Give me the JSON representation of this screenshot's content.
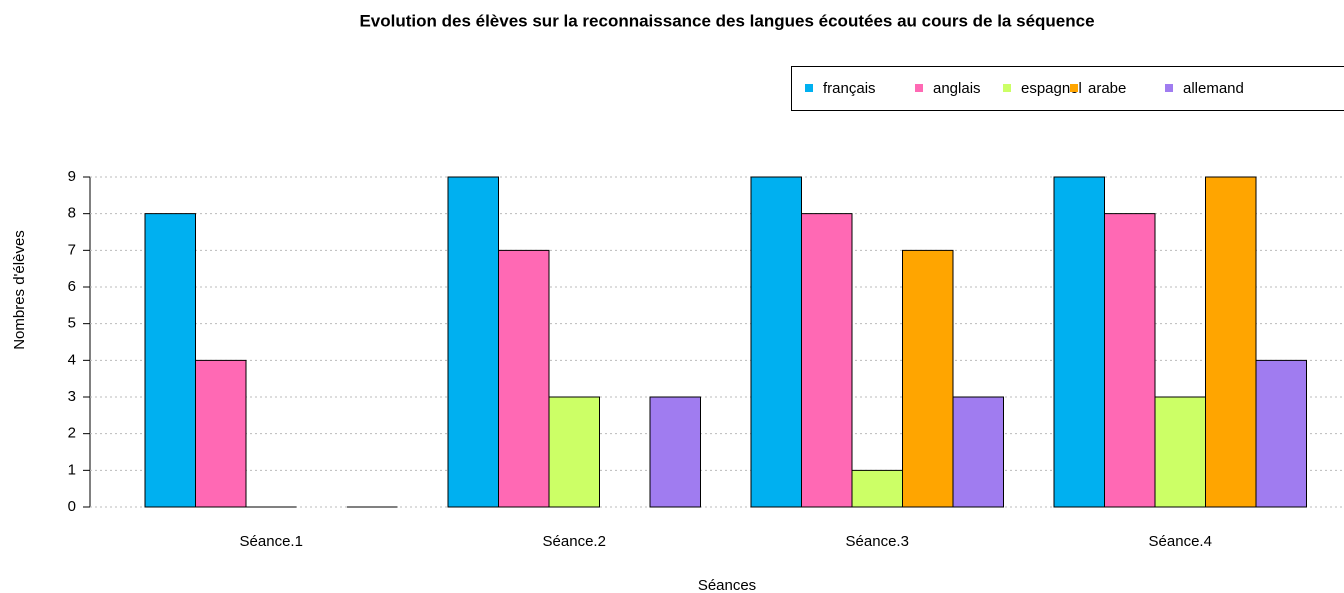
{
  "chart_data": {
    "type": "bar",
    "title": "Evolution des élèves sur la reconnaissance des langues écoutées au cours de la séquence",
    "x_label": "Séances",
    "y_label": "Nombres d'élèves",
    "categories": [
      "Séance.1",
      "Séance.2",
      "Séance.3",
      "Séance.4"
    ],
    "series": [
      {
        "name": "français",
        "color": "#00b0f0",
        "values": [
          8,
          9,
          9,
          9
        ]
      },
      {
        "name": "anglais",
        "color": "#ff69b4",
        "values": [
          4,
          7,
          8,
          8
        ]
      },
      {
        "name": "espagnol",
        "color": "#ccff66",
        "values": [
          0,
          3,
          1,
          3
        ]
      },
      {
        "name": "arabe",
        "color": "#ffa500",
        "values": [
          null,
          null,
          7,
          9
        ]
      },
      {
        "name": "allemand",
        "color": "#a07cf0",
        "values": [
          0,
          3,
          3,
          4
        ]
      }
    ],
    "ylim": [
      0,
      9
    ],
    "yticks": [
      0,
      1,
      2,
      3,
      4,
      5,
      6,
      7,
      8,
      9
    ],
    "grid": true,
    "legend": "top-right"
  }
}
